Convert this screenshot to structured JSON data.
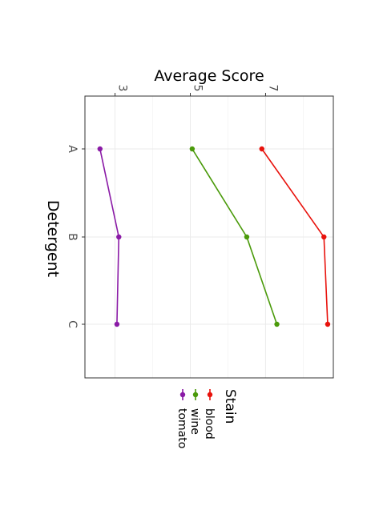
{
  "chart_data": {
    "type": "line",
    "title": "",
    "xlabel": "Detergent",
    "ylabel": "Average Score",
    "categories": [
      "A",
      "B",
      "C"
    ],
    "ylim": [
      2.2,
      8.8
    ],
    "y_ticks": [
      3,
      5,
      7
    ],
    "grid": true,
    "orientation": "rotated 90 degrees clockwise",
    "legend": {
      "title": "Stain",
      "placement": "right"
    },
    "series": [
      {
        "name": "blood",
        "color": "#e8120c",
        "values": [
          6.9,
          8.55,
          8.65
        ]
      },
      {
        "name": "wine",
        "color": "#4a9a0a",
        "values": [
          5.05,
          6.5,
          7.3
        ]
      },
      {
        "name": "tomato",
        "color": "#8a1aa6",
        "values": [
          2.6,
          3.1,
          3.05
        ]
      }
    ]
  }
}
